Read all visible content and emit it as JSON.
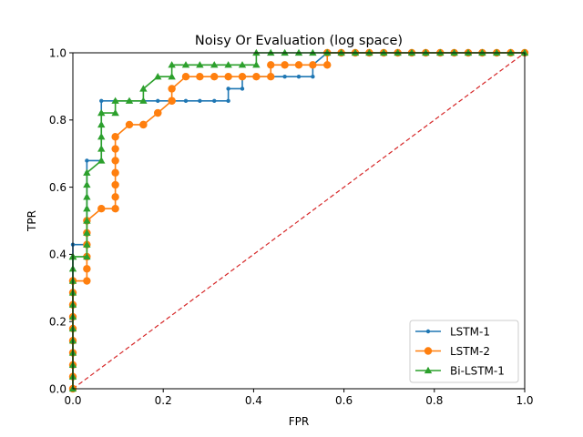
{
  "chart_data": {
    "type": "line",
    "title": "Noisy Or Evaluation (log space)",
    "xlabel": "FPR",
    "ylabel": "TPR",
    "xlim": [
      0,
      1
    ],
    "ylim": [
      0,
      1
    ],
    "grid": false,
    "legend_position": "lower-right",
    "x_ticks": [
      0.0,
      0.2,
      0.4,
      0.6,
      0.8,
      1.0
    ],
    "y_ticks": [
      0.0,
      0.2,
      0.4,
      0.6,
      0.8,
      1.0
    ],
    "x_tick_labels": [
      "0.0",
      "0.2",
      "0.4",
      "0.6",
      "0.8",
      "1.0"
    ],
    "y_tick_labels": [
      "0.0",
      "0.2",
      "0.4",
      "0.6",
      "0.8",
      "1.0"
    ],
    "reference_line": {
      "x": [
        0,
        1
      ],
      "y": [
        0,
        1
      ],
      "color": "#d62728",
      "style": "dashed"
    },
    "series": [
      {
        "name": "LSTM-1",
        "color": "#1f77b4",
        "marker": "circle-small",
        "x": [
          0,
          0,
          0,
          0,
          0,
          0,
          0,
          0,
          0,
          0,
          0,
          0,
          0,
          0.031,
          0.031,
          0.031,
          0.031,
          0.031,
          0.031,
          0.031,
          0.031,
          0.063,
          0.063,
          0.063,
          0.063,
          0.063,
          0.063,
          0.094,
          0.094,
          0.125,
          0.156,
          0.188,
          0.219,
          0.25,
          0.281,
          0.313,
          0.344,
          0.344,
          0.375,
          0.375,
          0.406,
          0.438,
          0.469,
          0.5,
          0.531,
          0.531,
          0.563,
          0.594,
          0.625,
          0.656,
          0.688,
          0.719,
          0.75,
          0.781,
          0.813,
          0.844,
          0.875,
          0.906,
          0.938,
          0.969,
          1.0
        ],
        "y": [
          0,
          0.036,
          0.071,
          0.107,
          0.143,
          0.179,
          0.214,
          0.25,
          0.286,
          0.321,
          0.357,
          0.393,
          0.429,
          0.429,
          0.464,
          0.5,
          0.536,
          0.571,
          0.607,
          0.643,
          0.679,
          0.679,
          0.714,
          0.75,
          0.786,
          0.821,
          0.857,
          0.857,
          0.857,
          0.857,
          0.857,
          0.857,
          0.857,
          0.857,
          0.857,
          0.857,
          0.857,
          0.893,
          0.893,
          0.929,
          0.929,
          0.929,
          0.929,
          0.929,
          0.929,
          0.964,
          1.0,
          1.0,
          1.0,
          1.0,
          1.0,
          1.0,
          1.0,
          1.0,
          1.0,
          1.0,
          1.0,
          1.0,
          1.0,
          1.0,
          1.0
        ]
      },
      {
        "name": "LSTM-2",
        "color": "#ff7f0e",
        "marker": "circle",
        "x": [
          0,
          0,
          0,
          0,
          0,
          0,
          0,
          0,
          0,
          0,
          0,
          0.031,
          0.031,
          0.031,
          0.031,
          0.031,
          0.031,
          0.063,
          0.094,
          0.094,
          0.094,
          0.094,
          0.094,
          0.094,
          0.094,
          0.125,
          0.156,
          0.156,
          0.188,
          0.188,
          0.219,
          0.219,
          0.219,
          0.25,
          0.281,
          0.313,
          0.344,
          0.375,
          0.406,
          0.438,
          0.438,
          0.469,
          0.5,
          0.531,
          0.563,
          0.563,
          0.594,
          0.625,
          0.656,
          0.688,
          0.719,
          0.75,
          0.781,
          0.813,
          0.844,
          0.875,
          0.906,
          0.938,
          0.969,
          1.0
        ],
        "y": [
          0,
          0.036,
          0.071,
          0.107,
          0.143,
          0.179,
          0.214,
          0.25,
          0.286,
          0.321,
          0.321,
          0.321,
          0.357,
          0.393,
          0.429,
          0.464,
          0.5,
          0.536,
          0.536,
          0.571,
          0.607,
          0.643,
          0.679,
          0.714,
          0.75,
          0.786,
          0.786,
          0.786,
          0.821,
          0.821,
          0.857,
          0.857,
          0.893,
          0.929,
          0.929,
          0.929,
          0.929,
          0.929,
          0.929,
          0.929,
          0.964,
          0.964,
          0.964,
          0.964,
          0.964,
          1.0,
          1.0,
          1.0,
          1.0,
          1.0,
          1.0,
          1.0,
          1.0,
          1.0,
          1.0,
          1.0,
          1.0,
          1.0,
          1.0,
          1.0
        ]
      },
      {
        "name": "Bi-LSTM-1",
        "color": "#2ca02c",
        "marker": "triangle",
        "x": [
          0,
          0,
          0,
          0,
          0,
          0,
          0,
          0,
          0,
          0,
          0,
          0,
          0,
          0,
          0.031,
          0.031,
          0.031,
          0.031,
          0.031,
          0.031,
          0.031,
          0.031,
          0.063,
          0.063,
          0.063,
          0.063,
          0.063,
          0.094,
          0.094,
          0.125,
          0.156,
          0.156,
          0.188,
          0.219,
          0.219,
          0.25,
          0.281,
          0.313,
          0.344,
          0.375,
          0.406,
          0.406,
          0.438,
          0.469,
          0.5,
          0.531,
          0.563,
          0.594,
          0.625,
          0.656,
          0.688,
          0.719,
          0.75,
          0.781,
          0.813,
          0.844,
          0.875,
          0.906,
          0.938,
          0.969,
          1.0
        ],
        "y": [
          0,
          0.036,
          0.071,
          0.107,
          0.143,
          0.179,
          0.214,
          0.25,
          0.286,
          0.321,
          0.357,
          0.393,
          0.393,
          0.393,
          0.393,
          0.429,
          0.464,
          0.5,
          0.536,
          0.571,
          0.607,
          0.643,
          0.679,
          0.714,
          0.75,
          0.786,
          0.821,
          0.821,
          0.857,
          0.857,
          0.857,
          0.893,
          0.929,
          0.929,
          0.964,
          0.964,
          0.964,
          0.964,
          0.964,
          0.964,
          0.964,
          1.0,
          1.0,
          1.0,
          1.0,
          1.0,
          1.0,
          1.0,
          1.0,
          1.0,
          1.0,
          1.0,
          1.0,
          1.0,
          1.0,
          1.0,
          1.0,
          1.0,
          1.0,
          1.0,
          1.0
        ]
      }
    ]
  }
}
